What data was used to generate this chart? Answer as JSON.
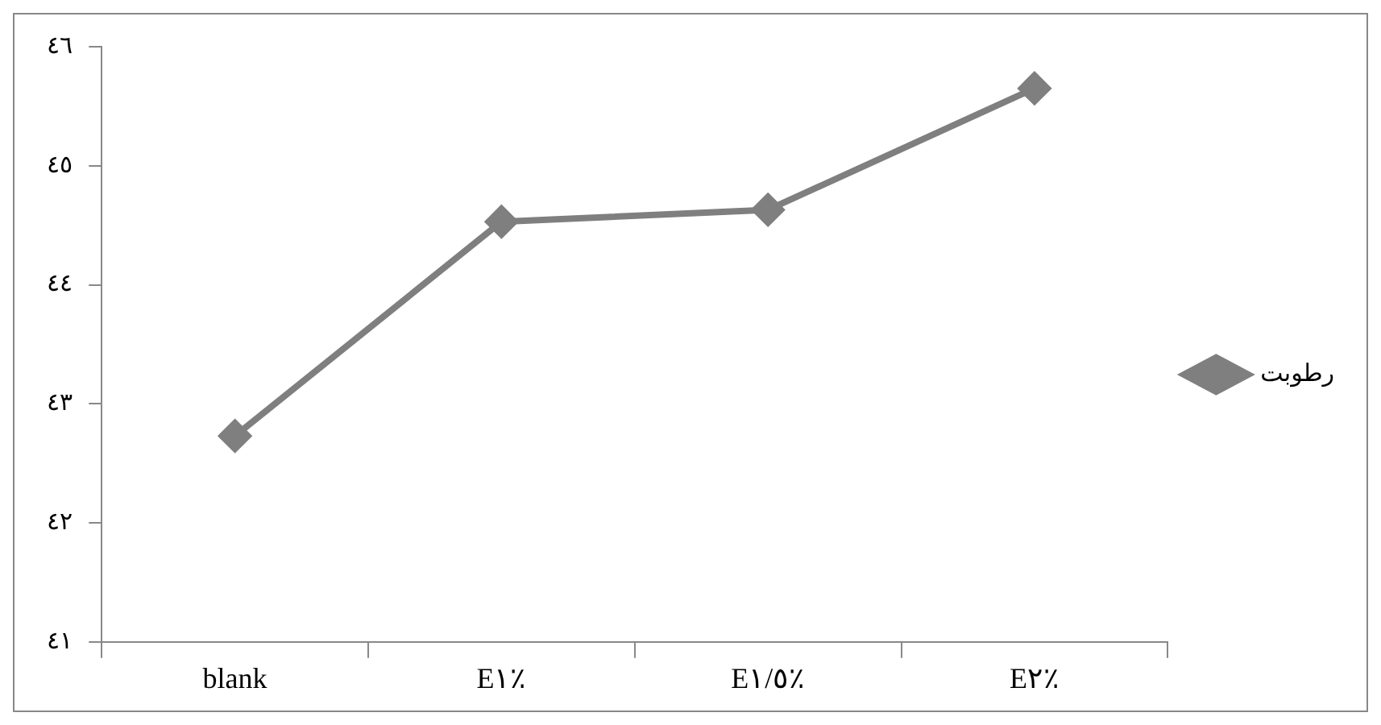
{
  "chart_data": {
    "type": "line",
    "categories": [
      "blank",
      "E١٪",
      "E١/٥٪",
      "E٢٪"
    ],
    "series": [
      {
        "name": "رطوبت",
        "color": "#7f7f7f",
        "values": [
          42.73,
          44.53,
          44.63,
          45.65
        ]
      }
    ],
    "ylim": [
      41,
      46
    ],
    "yticks": [
      {
        "value": 41,
        "label": "٤١"
      },
      {
        "value": 42,
        "label": "٤٢"
      },
      {
        "value": 43,
        "label": "٤٣"
      },
      {
        "value": 44,
        "label": "٤٤"
      },
      {
        "value": 45,
        "label": "٤٥"
      },
      {
        "value": 46,
        "label": "٤٦"
      }
    ],
    "grid": false,
    "legend": "right",
    "marker": "diamond",
    "line_style": "solid"
  }
}
